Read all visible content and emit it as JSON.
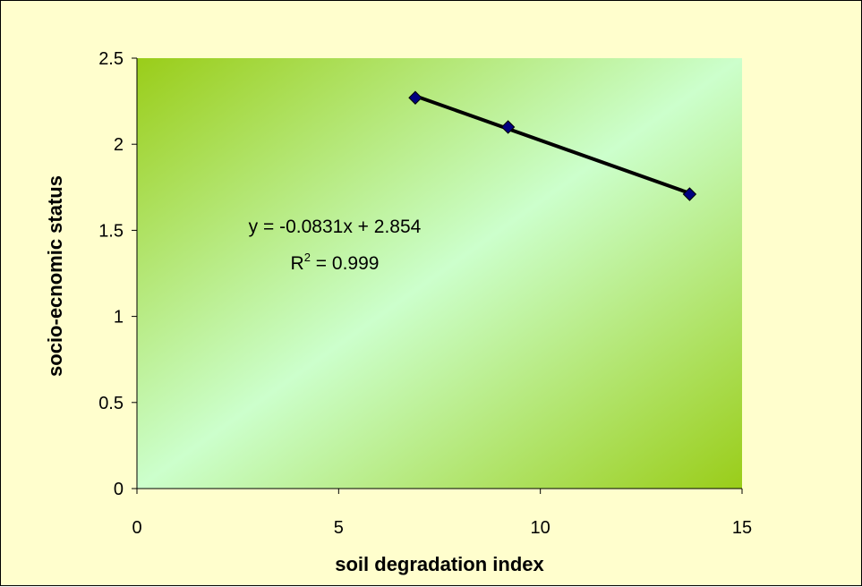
{
  "chart_data": {
    "type": "scatter",
    "title": "",
    "xlabel": "soil degradation index",
    "ylabel": "socio-ecnomic status",
    "xlim": [
      0,
      15
    ],
    "ylim": [
      0,
      2.5
    ],
    "x_ticks": [
      "0",
      "5",
      "10",
      "15"
    ],
    "y_ticks": [
      "0",
      "0.5",
      "1",
      "1.5",
      "2",
      "2.5"
    ],
    "x_tick_values": [
      0,
      5,
      10,
      15
    ],
    "y_tick_values": [
      0,
      0.5,
      1,
      1.5,
      2,
      2.5
    ],
    "grid": false,
    "series": [
      {
        "x": [
          6.9,
          9.2,
          13.7
        ],
        "y": [
          2.27,
          2.1,
          1.71
        ],
        "marker": "diamond",
        "color": "#000080"
      }
    ],
    "trendline": {
      "type": "linear",
      "slope": -0.0831,
      "intercept": 2.854,
      "color": "#000000",
      "equation_text": "y = -0.0831x + 2.854",
      "r2_prefix": "R",
      "r2_sup": "2",
      "r2_value_text": " = 0.999"
    },
    "plot_background": {
      "type": "gradient",
      "colors": [
        "#9acd19",
        "#ccffcc",
        "#9acd19"
      ]
    },
    "chart_background": "#fffecd"
  }
}
